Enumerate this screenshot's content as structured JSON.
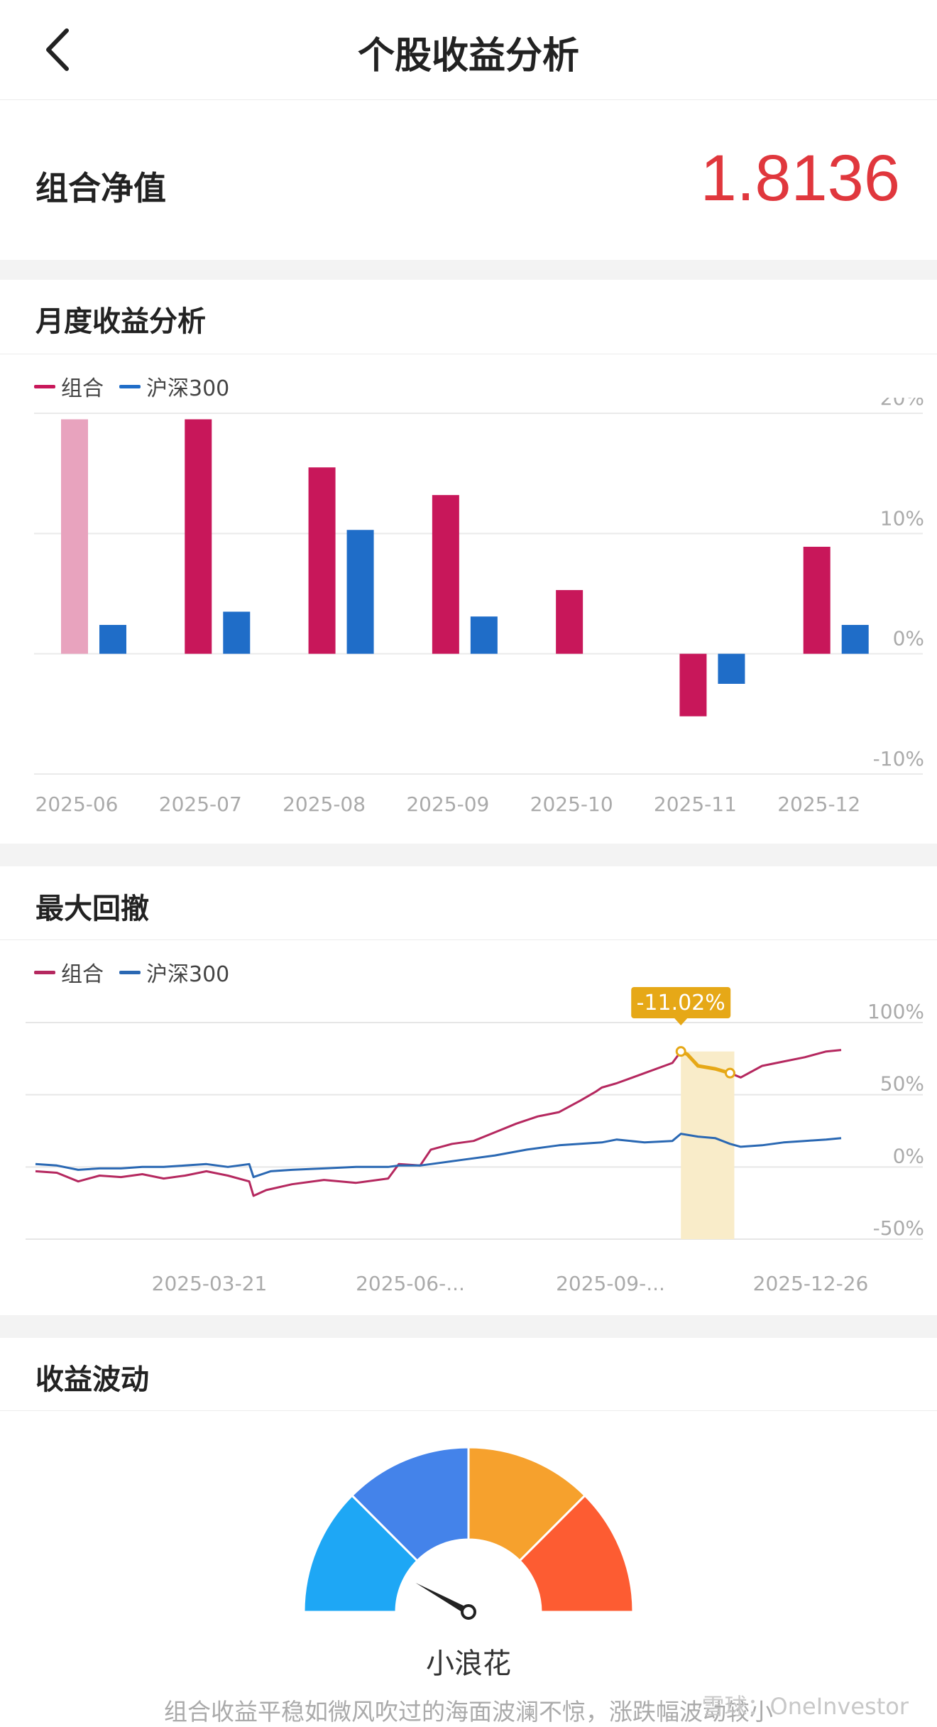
{
  "header": {
    "title": "个股收益分析",
    "back_icon": "chevron-left-icon"
  },
  "nav": {
    "label": "组合净值",
    "value": "1.8136",
    "value_color": "#e0373d"
  },
  "monthly": {
    "title": "月度收益分析",
    "legend": [
      {
        "name": "组合",
        "color": "#c8175a"
      },
      {
        "name": "沪深300",
        "color": "#1f6dc8"
      }
    ],
    "chart_data": {
      "type": "bar",
      "categories": [
        "2025-06",
        "2025-07",
        "2025-08",
        "2025-09",
        "2025-10",
        "2025-11",
        "2025-12"
      ],
      "series": [
        {
          "name": "组合",
          "values": [
            19.5,
            19.5,
            15.5,
            13.2,
            5.3,
            -5.2,
            8.9
          ]
        },
        {
          "name": "沪深300",
          "values": [
            2.4,
            3.5,
            10.3,
            3.1,
            0,
            -2.5,
            2.4
          ]
        }
      ],
      "y_ticks": [
        "20%",
        "10%",
        "0%",
        "-10%"
      ],
      "ylim": [
        -10,
        20
      ],
      "grid": true
    }
  },
  "drawdown": {
    "title": "最大回撤",
    "legend": [
      {
        "name": "组合",
        "color": "#b5285f"
      },
      {
        "name": "沪深300",
        "color": "#2a68b3"
      }
    ],
    "badge": "-11.02%",
    "chart_data": {
      "type": "line",
      "x_ticks": [
        "2025-03-21",
        "2025-06-...",
        "2025-09-...",
        "2025-12-26"
      ],
      "y_ticks": [
        "100%",
        "50%",
        "0%",
        "-50%"
      ],
      "ylim": [
        -50,
        100
      ],
      "grid": true,
      "series": [
        {
          "name": "组合",
          "points": [
            [
              0,
              -3
            ],
            [
              10,
              -4
            ],
            [
              20,
              -10
            ],
            [
              30,
              -6
            ],
            [
              40,
              -7
            ],
            [
              50,
              -5
            ],
            [
              60,
              -8
            ],
            [
              70,
              -6
            ],
            [
              80,
              -3
            ],
            [
              90,
              -6
            ],
            [
              100,
              -10
            ],
            [
              102,
              -20
            ],
            [
              108,
              -16
            ],
            [
              120,
              -12
            ],
            [
              135,
              -9
            ],
            [
              150,
              -11
            ],
            [
              165,
              -8
            ],
            [
              170,
              2
            ],
            [
              180,
              1
            ],
            [
              185,
              12
            ],
            [
              195,
              16
            ],
            [
              205,
              18
            ],
            [
              215,
              24
            ],
            [
              225,
              30
            ],
            [
              235,
              35
            ],
            [
              245,
              38
            ],
            [
              255,
              46
            ],
            [
              262,
              52
            ],
            [
              265,
              55
            ],
            [
              272,
              58
            ],
            [
              285,
              65
            ],
            [
              298,
              72
            ],
            [
              302,
              80
            ],
            [
              305,
              78
            ],
            [
              310,
              70
            ],
            [
              318,
              68
            ],
            [
              325,
              65
            ],
            [
              330,
              62
            ],
            [
              340,
              70
            ],
            [
              350,
              73
            ],
            [
              360,
              76
            ],
            [
              370,
              80
            ],
            [
              377,
              81
            ]
          ]
        },
        {
          "name": "沪深300",
          "points": [
            [
              0,
              2
            ],
            [
              10,
              1
            ],
            [
              20,
              -2
            ],
            [
              30,
              -1
            ],
            [
              40,
              -1
            ],
            [
              50,
              0
            ],
            [
              60,
              0
            ],
            [
              70,
              1
            ],
            [
              80,
              2
            ],
            [
              90,
              0
            ],
            [
              100,
              2
            ],
            [
              102,
              -7
            ],
            [
              110,
              -3
            ],
            [
              120,
              -2
            ],
            [
              135,
              -1
            ],
            [
              150,
              0
            ],
            [
              165,
              0
            ],
            [
              170,
              1
            ],
            [
              180,
              1
            ],
            [
              185,
              2
            ],
            [
              200,
              5
            ],
            [
              215,
              8
            ],
            [
              230,
              12
            ],
            [
              245,
              15
            ],
            [
              255,
              16
            ],
            [
              265,
              17
            ],
            [
              272,
              19
            ],
            [
              285,
              17
            ],
            [
              298,
              18
            ],
            [
              302,
              23
            ],
            [
              310,
              21
            ],
            [
              318,
              20
            ],
            [
              325,
              16
            ],
            [
              330,
              14
            ],
            [
              340,
              15
            ],
            [
              350,
              17
            ],
            [
              360,
              18
            ],
            [
              370,
              19
            ],
            [
              377,
              20
            ]
          ]
        }
      ],
      "drawdown_range": {
        "start": 302,
        "end": 327
      }
    }
  },
  "volatility": {
    "title": "收益波动",
    "level_label": "小浪花",
    "description": "组合收益平稳如微风吹过的海面波澜不惊，涨跌幅波动较小",
    "segment_colors": [
      "#1ea7f5",
      "#4483ea",
      "#f6a12d",
      "#fd5c32"
    ],
    "needle_level": 0.16
  },
  "watermark": "雪球：OneInvestor"
}
